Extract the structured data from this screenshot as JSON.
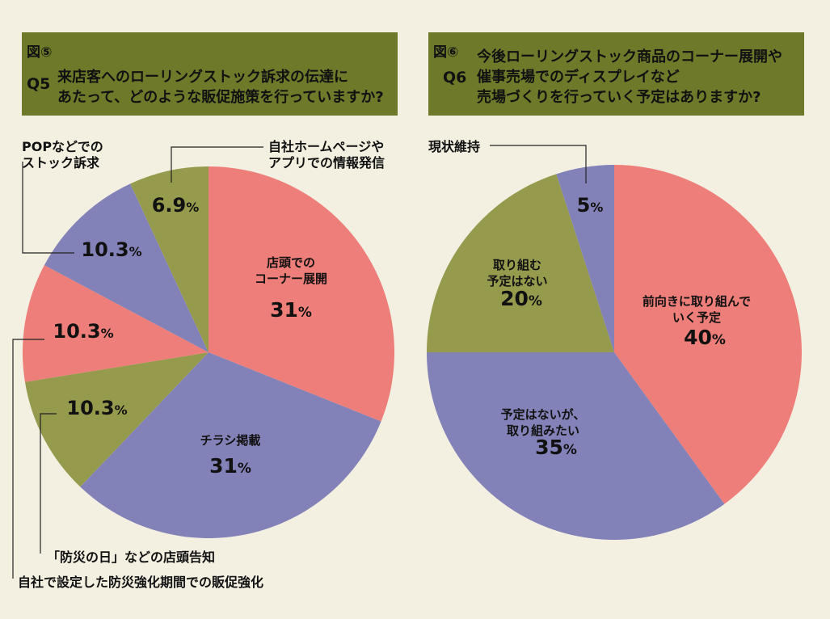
{
  "header1": {
    "figure": "図⑤",
    "q": "Q5",
    "text": "来店客へのローリングストック訴求の伝達に\nあたって、どのような販促施策を行っていますか?"
  },
  "header2": {
    "figure": "図⑥",
    "q": "Q6",
    "text": "今後ローリングストック商品のコーナー展開や\n催事売場でのディスプレイなど\n売場づくりを行っていく予定はありますか?"
  },
  "colors": {
    "pink": "#ee7e79",
    "blue": "#8282b8",
    "olive": "#969a4c",
    "title_bg": "#6e7a2a",
    "background": "#f3efe1"
  },
  "chart_data": [
    {
      "type": "pie",
      "slices": [
        {
          "label": "店頭での\nコーナー展開",
          "value": 31,
          "value_label": "31",
          "color": "#ee7e79"
        },
        {
          "label": "チラシ掲載",
          "value": 31,
          "value_label": "31",
          "color": "#8282b8"
        },
        {
          "label": "「防災の日」などの店頭告知",
          "value": 10.3,
          "value_label": "10.3",
          "color": "#969a4c"
        },
        {
          "label": "自社で設定した防災強化期間での販促強化",
          "value": 10.3,
          "value_label": "10.3",
          "color": "#ee7e79"
        },
        {
          "label": "POPなどでの\nストック訴求",
          "value": 10.3,
          "value_label": "10.3",
          "color": "#8282b8"
        },
        {
          "label": "自社ホームページや\nアプリでの情報発信",
          "value": 6.9,
          "value_label": "6.9",
          "color": "#969a4c"
        }
      ]
    },
    {
      "type": "pie",
      "slices": [
        {
          "label": "前向きに取り組んで\nいく予定",
          "value": 40,
          "value_label": "40",
          "color": "#ee7e79"
        },
        {
          "label": "予定はないが、\n取り組みたい",
          "value": 35,
          "value_label": "35",
          "color": "#8282b8"
        },
        {
          "label": "取り組む\n予定はない",
          "value": 20,
          "value_label": "20",
          "color": "#969a4c"
        },
        {
          "label": "現状維持",
          "value": 5,
          "value_label": "5",
          "color": "#8282b8"
        }
      ]
    }
  ],
  "percent_sign": "%"
}
